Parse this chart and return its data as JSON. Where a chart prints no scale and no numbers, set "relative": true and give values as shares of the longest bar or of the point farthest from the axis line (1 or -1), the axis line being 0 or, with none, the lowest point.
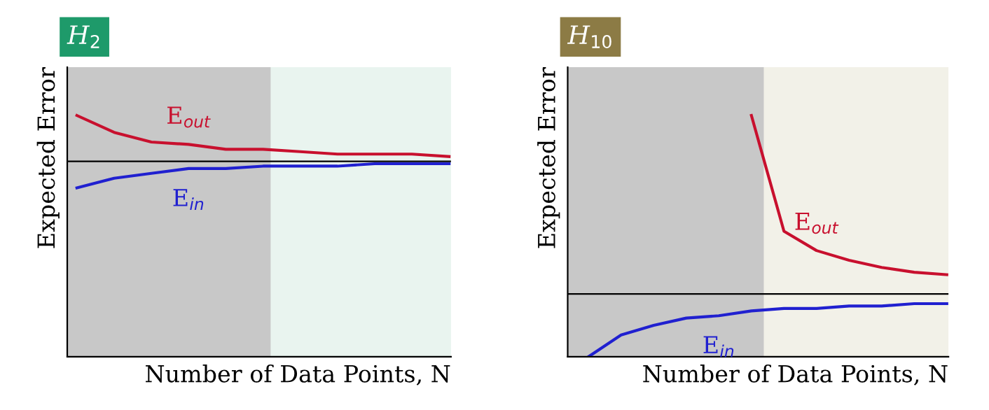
{
  "chart_data": [
    {
      "type": "line",
      "title": "H$_{2}$",
      "xlabel": "Number of Data Points, N",
      "ylabel": "Expected Error",
      "relative": true,
      "categories": [
        null,
        null,
        null,
        null,
        null,
        null,
        null,
        null,
        null,
        null,
        null
      ],
      "series": [
        {
          "name": "E$_{out}$",
          "color": "#c8102e",
          "values": [
            1.0,
            0.93,
            0.89,
            0.88,
            0.86,
            0.86,
            0.85,
            0.84,
            0.84,
            0.84,
            0.83
          ]
        },
        {
          "name": "E$_{in}$",
          "color": "#2020d0",
          "values": [
            0.7,
            0.74,
            0.76,
            0.78,
            0.78,
            0.79,
            0.79,
            0.79,
            0.8,
            0.8,
            0.8
          ]
        }
      ],
      "ref_lines": [
        {
          "axis": "y",
          "value": 0.81,
          "color": "#000000"
        }
      ]
    },
    {
      "type": "line",
      "title": "H$_{10}$",
      "xlabel": "Number of Data Points, N",
      "ylabel": "Expected Error",
      "relative": true,
      "categories": [
        null,
        null,
        null,
        null,
        null,
        null,
        null,
        null,
        null,
        null,
        null,
        null
      ],
      "series": [
        {
          "name": "E$_{out}$",
          "color": "#c8102e",
          "values": [
            null,
            null,
            null,
            null,
            null,
            1.0,
            0.52,
            0.44,
            0.4,
            0.37,
            0.35,
            0.34
          ]
        },
        {
          "name": "E$_{in}$",
          "color": "#2020d0",
          "values": [
            0.0,
            0.09,
            0.13,
            0.16,
            0.17,
            0.19,
            0.2,
            0.2,
            0.21,
            0.21,
            0.22,
            0.22
          ]
        }
      ],
      "ref_lines": [
        {
          "axis": "y",
          "value": 0.26,
          "color": "#000000"
        }
      ]
    }
  ]
}
